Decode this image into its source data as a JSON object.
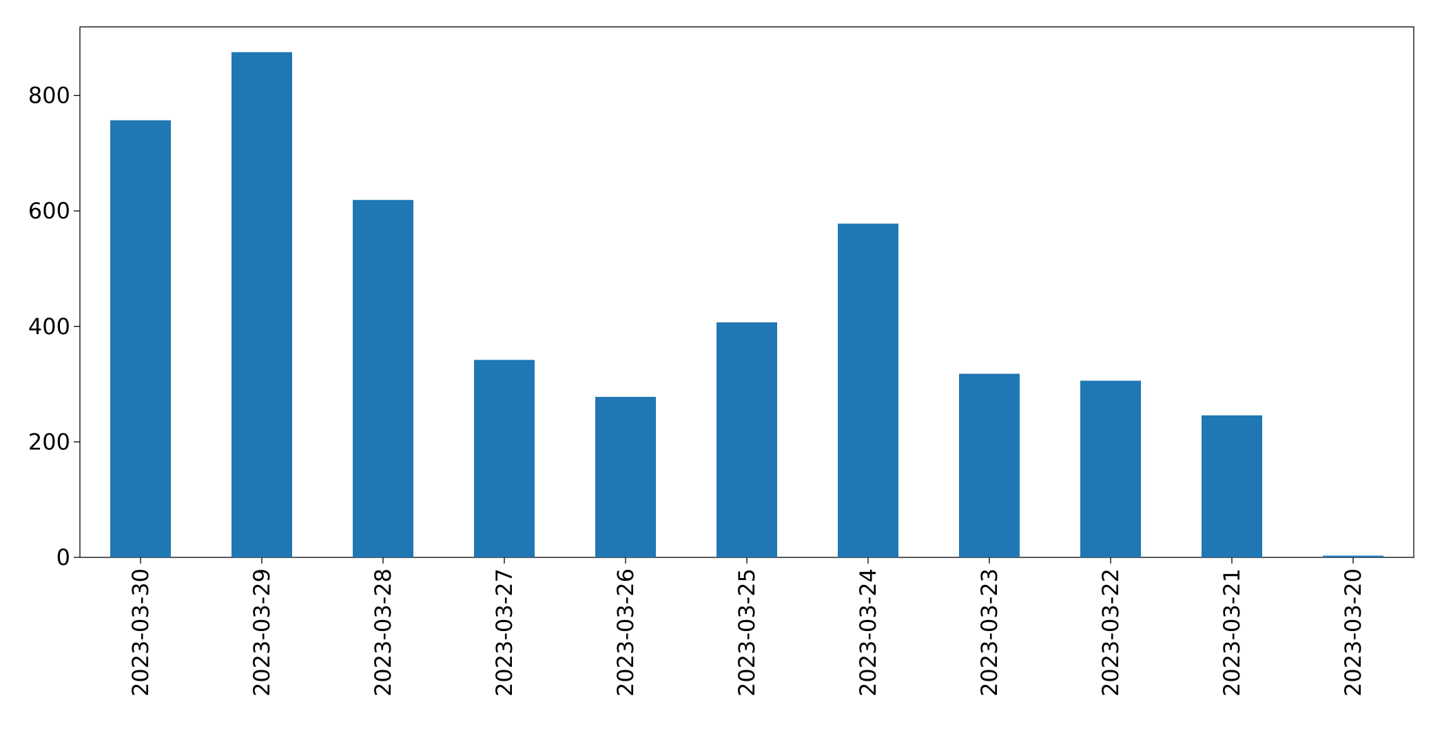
{
  "chart_data": {
    "type": "bar",
    "categories": [
      "2023-03-30",
      "2023-03-29",
      "2023-03-28",
      "2023-03-27",
      "2023-03-26",
      "2023-03-25",
      "2023-03-24",
      "2023-03-23",
      "2023-03-22",
      "2023-03-21",
      "2023-03-20"
    ],
    "values": [
      757,
      875,
      619,
      342,
      278,
      407,
      578,
      318,
      306,
      246,
      3
    ],
    "color": "#1f77b4",
    "ylim": [
      0,
      918.75
    ],
    "yticks": [
      0,
      200,
      400,
      600,
      800
    ],
    "grid": false
  }
}
